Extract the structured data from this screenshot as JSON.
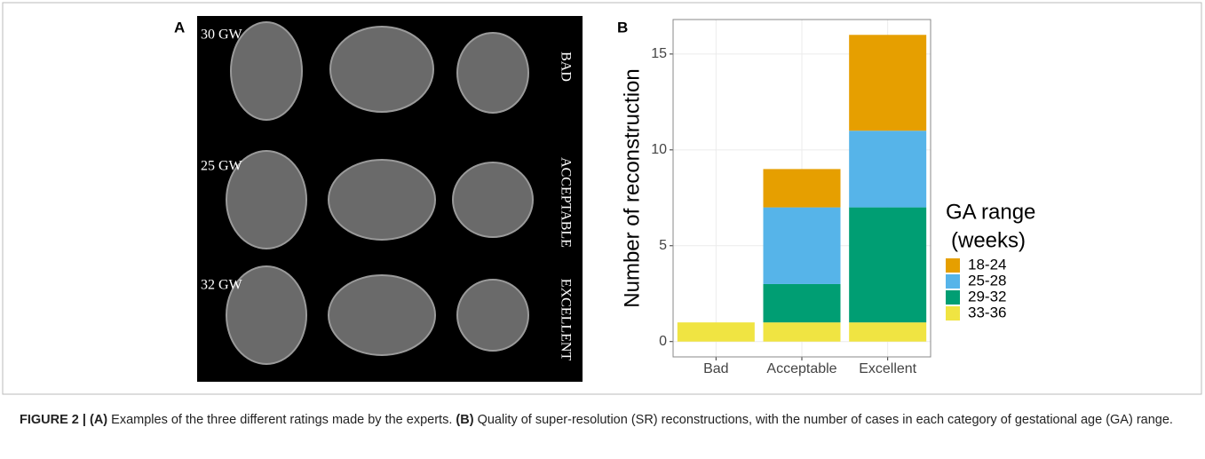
{
  "panel_a": {
    "label": "A",
    "rows": [
      {
        "age": "30 GW",
        "rating": "BAD"
      },
      {
        "age": "25 GW",
        "rating": "ACCEPTABLE"
      },
      {
        "age": "32 GW",
        "rating": "EXCELLENT"
      }
    ]
  },
  "chart_data": {
    "type": "stacked_bar",
    "panel_label": "B",
    "y_label": "Number of reconstruction",
    "legend_title": [
      "GA range",
      "(weeks)"
    ],
    "categories": [
      "Bad",
      "Acceptable",
      "Excellent"
    ],
    "series": [
      {
        "name": "18-24",
        "color": "#E69F00",
        "values": [
          0,
          2,
          5
        ]
      },
      {
        "name": "25-28",
        "color": "#56B4E9",
        "values": [
          0,
          4,
          4
        ]
      },
      {
        "name": "29-32",
        "color": "#009E73",
        "values": [
          0,
          2,
          6
        ]
      },
      {
        "name": "33-36",
        "color": "#F0E442",
        "values": [
          1,
          1,
          1
        ]
      }
    ],
    "ylim": [
      -0.8,
      16.8
    ],
    "yticks": [
      0,
      5,
      10,
      15
    ],
    "grid": true,
    "legend": "right"
  },
  "caption": [
    "FIGURE 2 | (A)",
    "Examples of the three different ratings made by the experts.",
    "(B)",
    "Quality of super-resolution (SR) reconstructions, with the number of cases in each category of gestational age (GA) range."
  ]
}
